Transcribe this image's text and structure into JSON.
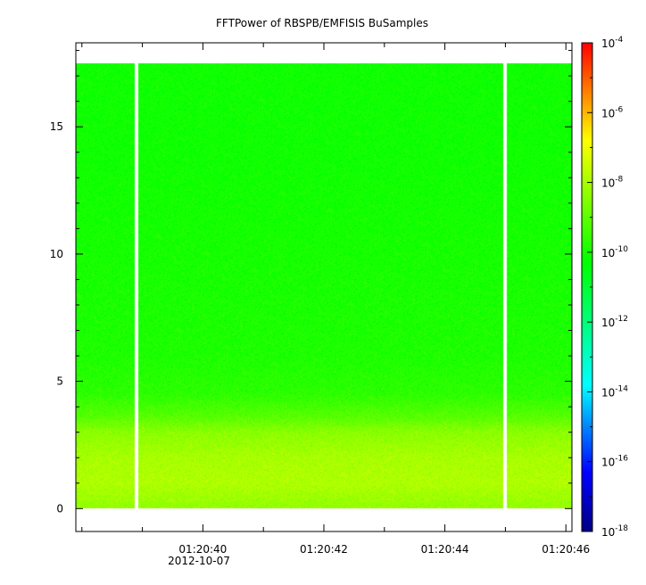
{
  "chart_data": {
    "type": "heatmap",
    "title": "FFTPower of RBSPB/EMFISIS  BuSamples",
    "xlabel": "",
    "ylabel": "",
    "x_tick_labels": [
      "01:20:40",
      "01:20:42",
      "01:20:44",
      "01:20:46"
    ],
    "x_tick_values_s": [
      40,
      42,
      44,
      46
    ],
    "x_range_s": [
      37.9,
      46.1
    ],
    "date_label": "2012-10-07",
    "y_tick_labels": [
      "0",
      "5",
      "10",
      "15"
    ],
    "y_tick_values": [
      0,
      5,
      10,
      15
    ],
    "y_range": [
      -0.9,
      18.3
    ],
    "data_y_range": [
      0,
      17.5
    ],
    "data_gaps_s": [
      [
        38.87,
        38.93
      ],
      [
        44.97,
        45.03
      ]
    ],
    "colorbar": {
      "scale": "log",
      "range": [
        -18,
        -4
      ],
      "tick_exponents": [
        -18,
        -16,
        -14,
        -12,
        -10,
        -8,
        -6,
        -4
      ],
      "tick_base": "10"
    },
    "power_profile": [
      {
        "y": 0.0,
        "log_power": -8.3
      },
      {
        "y": 1.0,
        "log_power": -7.9
      },
      {
        "y": 2.0,
        "log_power": -8.0
      },
      {
        "y": 3.0,
        "log_power": -8.4
      },
      {
        "y": 3.6,
        "log_power": -9.1
      },
      {
        "y": 4.5,
        "log_power": -9.7
      },
      {
        "y": 6.0,
        "log_power": -9.9
      },
      {
        "y": 10.0,
        "log_power": -10.0
      },
      {
        "y": 14.0,
        "log_power": -10.1
      },
      {
        "y": 17.5,
        "log_power": -10.1
      }
    ]
  }
}
